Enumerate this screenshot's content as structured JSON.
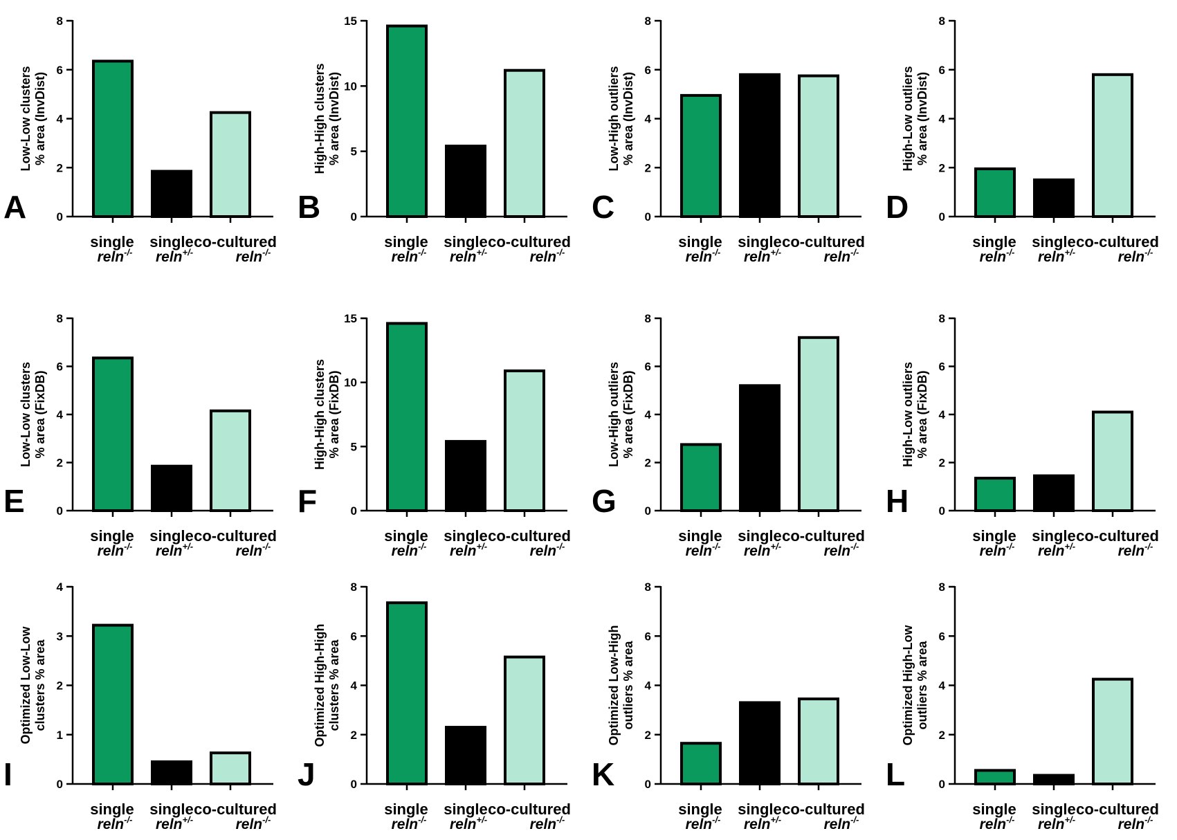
{
  "groups": [
    {
      "line1": "single",
      "line2": "reln",
      "sup": "-/-"
    },
    {
      "line1": "single",
      "line2": "reln",
      "sup": "+/-"
    },
    {
      "line1": "co-cultured",
      "line2": "reln",
      "sup": "-/-"
    }
  ],
  "colors": {
    "single_reln_mm": "#0a9a5e",
    "single_reln_pm": "#000000",
    "co_cultured_reln_mm": "#b5e8d4",
    "outline": "#000000"
  },
  "chart_data": [
    {
      "letter": "A",
      "type": "bar",
      "ylabel": [
        "Low-Low clusters",
        "% area (InvDist)"
      ],
      "ylim": [
        0,
        8
      ],
      "yticks": [
        0,
        2,
        4,
        6,
        8
      ],
      "values": [
        6.35,
        1.85,
        4.25
      ]
    },
    {
      "letter": "B",
      "type": "bar",
      "ylabel": [
        "High-High clusters",
        "% area (InvDist)"
      ],
      "ylim": [
        0,
        15
      ],
      "yticks": [
        0,
        5,
        10,
        15
      ],
      "values": [
        14.6,
        5.4,
        11.2
      ]
    },
    {
      "letter": "C",
      "type": "bar",
      "ylabel": [
        "Low-High outliers",
        "% area (InvDist)"
      ],
      "ylim": [
        0,
        8
      ],
      "yticks": [
        0,
        2,
        4,
        6,
        8
      ],
      "values": [
        4.95,
        5.8,
        5.75
      ]
    },
    {
      "letter": "D",
      "type": "bar",
      "ylabel": [
        "High-Low outliers",
        "% area (InvDist)"
      ],
      "ylim": [
        0,
        8
      ],
      "yticks": [
        0,
        2,
        4,
        6,
        8
      ],
      "values": [
        1.95,
        1.5,
        5.8
      ]
    },
    {
      "letter": "E",
      "type": "bar",
      "ylabel": [
        "Low-Low clusters",
        "% area (FixDB)"
      ],
      "ylim": [
        0,
        8
      ],
      "yticks": [
        0,
        2,
        4,
        6,
        8
      ],
      "values": [
        6.35,
        1.85,
        4.15
      ]
    },
    {
      "letter": "F",
      "type": "bar",
      "ylabel": [
        "High-High clusters",
        "% area (FixDB)"
      ],
      "ylim": [
        0,
        15
      ],
      "yticks": [
        0,
        5,
        10,
        15
      ],
      "values": [
        14.6,
        5.4,
        10.9
      ]
    },
    {
      "letter": "G",
      "type": "bar",
      "ylabel": [
        "Low-High outliers",
        "% area (FixDB)"
      ],
      "ylim": [
        0,
        8
      ],
      "yticks": [
        0,
        2,
        4,
        6,
        8
      ],
      "values": [
        2.75,
        5.2,
        7.2
      ]
    },
    {
      "letter": "H",
      "type": "bar",
      "ylabel": [
        "High-Low outliers",
        "% area (FixDB)"
      ],
      "ylim": [
        0,
        8
      ],
      "yticks": [
        0,
        2,
        4,
        6,
        8
      ],
      "values": [
        1.35,
        1.45,
        4.1
      ]
    },
    {
      "letter": "I",
      "type": "bar",
      "ylabel": [
        "Optimized Low-Low",
        "clusters % area"
      ],
      "ylim": [
        0,
        4
      ],
      "yticks": [
        0,
        1,
        2,
        3,
        4
      ],
      "values": [
        3.22,
        0.45,
        0.63
      ]
    },
    {
      "letter": "J",
      "type": "bar",
      "ylabel": [
        "Optimized High-High",
        "clusters % area"
      ],
      "ylim": [
        0,
        8
      ],
      "yticks": [
        0,
        2,
        4,
        6,
        8
      ],
      "values": [
        7.35,
        2.3,
        5.15
      ]
    },
    {
      "letter": "K",
      "type": "bar",
      "ylabel": [
        "Optimized Low-High",
        "outliers % area"
      ],
      "ylim": [
        0,
        8
      ],
      "yticks": [
        0,
        2,
        4,
        6,
        8
      ],
      "values": [
        1.65,
        3.3,
        3.45
      ]
    },
    {
      "letter": "L",
      "type": "bar",
      "ylabel": [
        "Optimized High-Low",
        "outliers % area"
      ],
      "ylim": [
        0,
        8
      ],
      "yticks": [
        0,
        2,
        4,
        6,
        8
      ],
      "values": [
        0.55,
        0.35,
        4.25
      ]
    }
  ]
}
